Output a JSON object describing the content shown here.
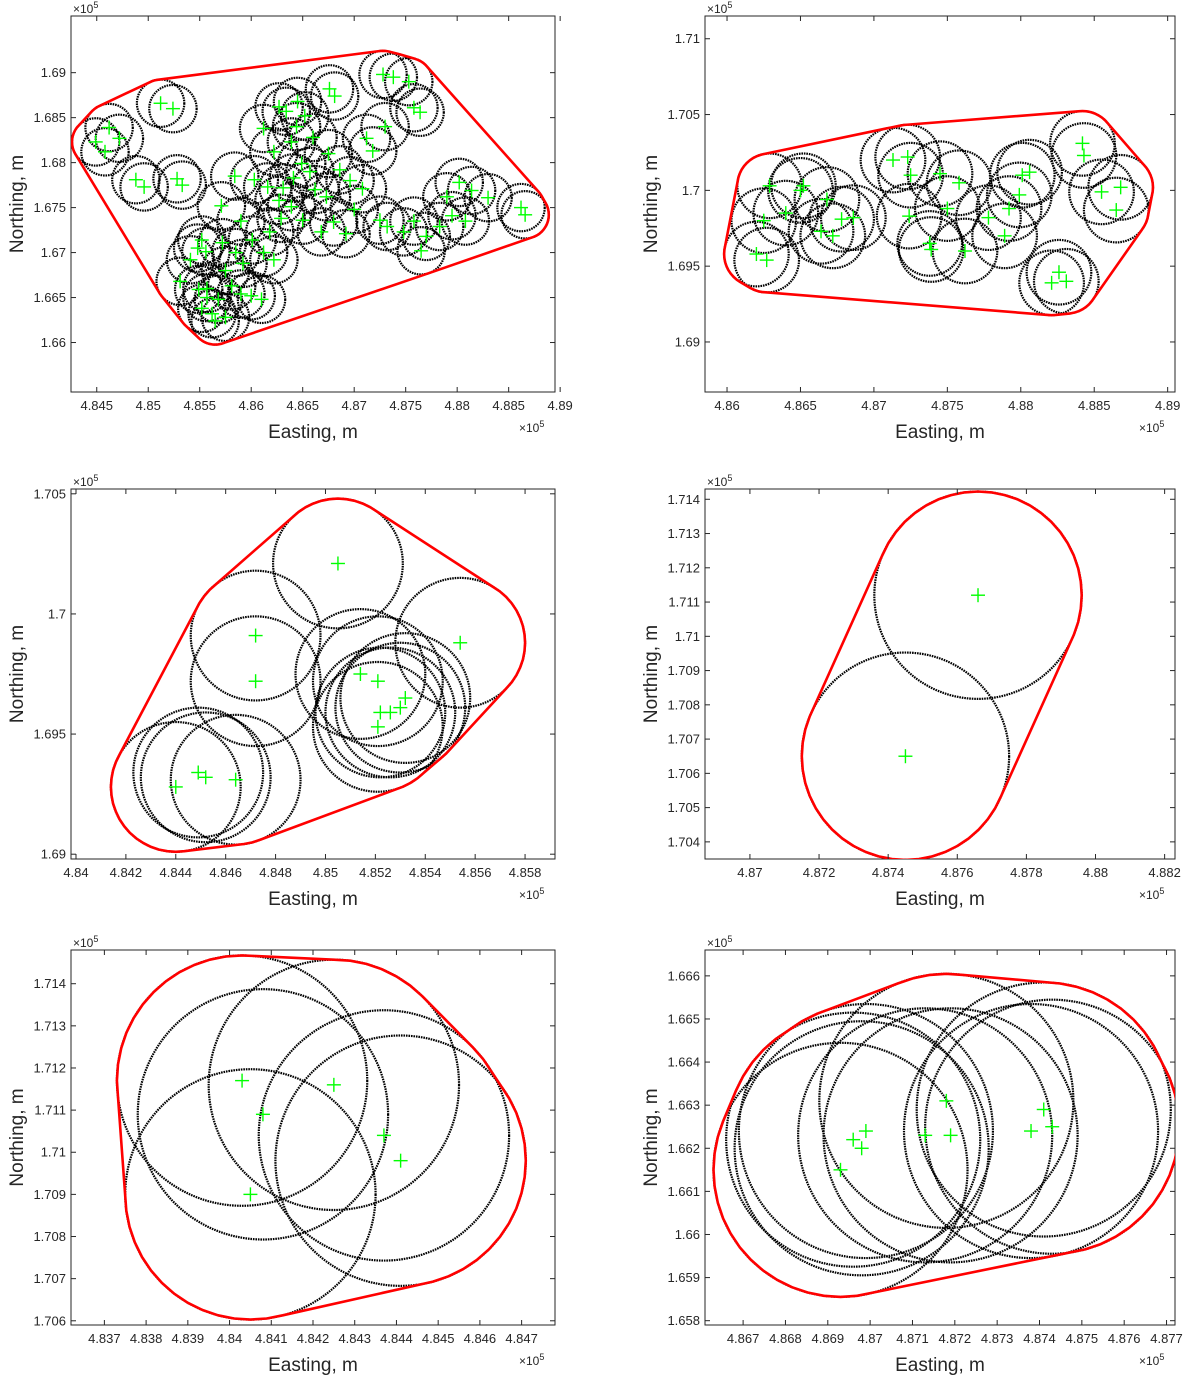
{
  "chart_data": [
    {
      "type": "scatter",
      "xlabel": "Easting, m",
      "ylabel": "Northing, m",
      "x_multiplier": "×10",
      "x_exponent": "5",
      "y_multiplier": "×10",
      "y_exponent": "5",
      "xlim": [
        4.8425,
        4.8895
      ],
      "ylim": [
        1.6545,
        1.6963
      ],
      "xticks": [
        4.845,
        4.85,
        4.855,
        4.86,
        4.865,
        4.87,
        4.875,
        4.88,
        4.885,
        4.89
      ],
      "xtick_labels": [
        "4.845",
        "4.85",
        "4.855",
        "4.86",
        "4.865",
        "4.87",
        "4.875",
        "4.88",
        "4.885",
        "4.89"
      ],
      "yticks": [
        1.66,
        1.665,
        1.67,
        1.675,
        1.68,
        1.685,
        1.69
      ],
      "ytick_labels": [
        "1.66",
        "1.665",
        "1.67",
        "1.675",
        "1.68",
        "1.685",
        "1.69"
      ],
      "buffer_radius": 0.0023,
      "series": [
        {
          "values": [
            [
              4.8462,
              1.6839
            ],
            [
              4.8458,
              1.6812
            ],
            [
              4.8449,
              1.6823
            ],
            [
              4.8472,
              1.6827
            ],
            [
              4.8512,
              1.6866
            ],
            [
              4.8524,
              1.686
            ],
            [
              4.8496,
              1.6773
            ],
            [
              4.8488,
              1.6781
            ],
            [
              4.8533,
              1.6775
            ],
            [
              4.8528,
              1.6782
            ],
            [
              4.8552,
              1.6714
            ],
            [
              4.8548,
              1.6705
            ],
            [
              4.8541,
              1.6692
            ],
            [
              4.8531,
              1.6668
            ],
            [
              4.8549,
              1.6659
            ],
            [
              4.8557,
              1.665
            ],
            [
              4.8568,
              1.6648
            ],
            [
              4.8552,
              1.6638
            ],
            [
              4.8562,
              1.6632
            ],
            [
              4.8565,
              1.6624
            ],
            [
              4.8575,
              1.6628
            ],
            [
              4.8581,
              1.6663
            ],
            [
              4.859,
              1.6654
            ],
            [
              4.8575,
              1.668
            ],
            [
              4.8592,
              1.6688
            ],
            [
              4.8585,
              1.67
            ],
            [
              4.8572,
              1.6711
            ],
            [
              4.8601,
              1.6714
            ],
            [
              4.8612,
              1.67
            ],
            [
              4.8622,
              1.6692
            ],
            [
              4.8618,
              1.6723
            ],
            [
              4.8629,
              1.6738
            ],
            [
              4.8571,
              1.6752
            ],
            [
              4.8584,
              1.6785
            ],
            [
              4.8603,
              1.6781
            ],
            [
              4.8616,
              1.6773
            ],
            [
              4.8627,
              1.6758
            ],
            [
              4.8639,
              1.6751
            ],
            [
              4.8631,
              1.6772
            ],
            [
              4.8641,
              1.6783
            ],
            [
              4.8649,
              1.6799
            ],
            [
              4.8657,
              1.679
            ],
            [
              4.8662,
              1.677
            ],
            [
              4.8673,
              1.6762
            ],
            [
              4.865,
              1.6736
            ],
            [
              4.8668,
              1.6723
            ],
            [
              4.868,
              1.6734
            ],
            [
              4.8692,
              1.6721
            ],
            [
              4.87,
              1.6748
            ],
            [
              4.8696,
              1.678
            ],
            [
              4.8686,
              1.6792
            ],
            [
              4.8708,
              1.6771
            ],
            [
              4.8675,
              1.681
            ],
            [
              4.866,
              1.6828
            ],
            [
              4.8644,
              1.684
            ],
            [
              4.8652,
              1.6852
            ],
            [
              4.8634,
              1.6857
            ],
            [
              4.8645,
              1.6868
            ],
            [
              4.8627,
              1.6862
            ],
            [
              4.8612,
              1.6838
            ],
            [
              4.8639,
              1.6823
            ],
            [
              4.8622,
              1.6812
            ],
            [
              4.8676,
              1.6882
            ],
            [
              4.8681,
              1.6874
            ],
            [
              4.8712,
              1.6827
            ],
            [
              4.8718,
              1.6813
            ],
            [
              4.873,
              1.684
            ],
            [
              4.8728,
              1.6898
            ],
            [
              4.8738,
              1.6895
            ],
            [
              4.8753,
              1.689
            ],
            [
              4.8758,
              1.6861
            ],
            [
              4.8764,
              1.6856
            ],
            [
              4.8725,
              1.6736
            ],
            [
              4.8732,
              1.6729
            ],
            [
              4.8748,
              1.6723
            ],
            [
              4.8758,
              1.6735
            ],
            [
              4.877,
              1.6718
            ],
            [
              4.8765,
              1.6702
            ],
            [
              4.8783,
              1.6729
            ],
            [
              4.8795,
              1.6741
            ],
            [
              4.8808,
              1.6735
            ],
            [
              4.879,
              1.6762
            ],
            [
              4.8802,
              1.6778
            ],
            [
              4.8814,
              1.6769
            ],
            [
              4.883,
              1.6761
            ],
            [
              4.8862,
              1.675
            ],
            [
              4.8866,
              1.6742
            ],
            [
              4.86,
              1.6652
            ],
            [
              4.861,
              1.6648
            ],
            [
              4.859,
              1.6735
            ],
            [
              4.8557,
              1.666
            ],
            [
              4.8556,
              1.6701
            ]
          ]
        }
      ]
    },
    {
      "type": "scatter",
      "xlabel": "Easting, m",
      "ylabel": "Northing, m",
      "x_multiplier": "×10",
      "x_exponent": "5",
      "y_multiplier": "×10",
      "y_exponent": "5",
      "xlim": [
        4.8585,
        4.8905
      ],
      "ylim": [
        1.6867,
        1.7115
      ],
      "xticks": [
        4.86,
        4.865,
        4.87,
        4.875,
        4.88,
        4.885,
        4.89
      ],
      "xtick_labels": [
        "4.86",
        "4.865",
        "4.87",
        "4.875",
        "4.88",
        "4.885",
        "4.89"
      ],
      "yticks": [
        1.69,
        1.695,
        1.7,
        1.705,
        1.71
      ],
      "ytick_labels": [
        "1.69",
        "1.695",
        "1.7",
        "1.705",
        "1.71"
      ],
      "buffer_radius": 0.0022,
      "series": [
        {
          "values": [
            [
              4.862,
              1.6958
            ],
            [
              4.8627,
              1.6954
            ],
            [
              4.8625,
              1.698
            ],
            [
              4.8629,
              1.7003
            ],
            [
              4.864,
              1.6985
            ],
            [
              4.865,
              1.7
            ],
            [
              4.8652,
              1.7003
            ],
            [
              4.8668,
              1.6994
            ],
            [
              4.8664,
              1.6973
            ],
            [
              4.8678,
              1.6981
            ],
            [
              4.8686,
              1.6982
            ],
            [
              4.8672,
              1.697
            ],
            [
              4.8713,
              1.702
            ],
            [
              4.8723,
              1.7022
            ],
            [
              4.8725,
              1.701
            ],
            [
              4.8724,
              1.6983
            ],
            [
              4.8738,
              1.6965
            ],
            [
              4.8739,
              1.6961
            ],
            [
              4.8745,
              1.7011
            ],
            [
              4.875,
              1.6988
            ],
            [
              4.8758,
              1.7005
            ],
            [
              4.8762,
              1.696
            ],
            [
              4.8778,
              1.6982
            ],
            [
              4.8789,
              1.697
            ],
            [
              4.8792,
              1.6988
            ],
            [
              4.8799,
              1.6997
            ],
            [
              4.8801,
              1.701
            ],
            [
              4.8806,
              1.7012
            ],
            [
              4.8821,
              1.6939
            ],
            [
              4.8826,
              1.6946
            ],
            [
              4.8831,
              1.694
            ],
            [
              4.8842,
              1.7031
            ],
            [
              4.8843,
              1.7023
            ],
            [
              4.8855,
              1.6999
            ],
            [
              4.8868,
              1.7002
            ],
            [
              4.8865,
              1.6987
            ]
          ]
        }
      ]
    },
    {
      "type": "scatter",
      "xlabel": "Easting, m",
      "ylabel": "Northing, m",
      "x_multiplier": "×10",
      "x_exponent": "5",
      "y_multiplier": "×10",
      "y_exponent": "5",
      "xlim": [
        4.8398,
        4.8592
      ],
      "ylim": [
        1.6898,
        1.7052
      ],
      "xticks": [
        4.84,
        4.842,
        4.844,
        4.846,
        4.848,
        4.85,
        4.852,
        4.854,
        4.856,
        4.858
      ],
      "xtick_labels": [
        "4.84",
        "4.842",
        "4.844",
        "4.846",
        "4.848",
        "4.85",
        "4.852",
        "4.854",
        "4.856",
        "4.858"
      ],
      "yticks": [
        1.69,
        1.695,
        1.7,
        1.705
      ],
      "ytick_labels": [
        "1.69",
        "1.695",
        "1.7",
        "1.705"
      ],
      "buffer_radius": 0.0026,
      "series": [
        {
          "values": [
            [
              4.8505,
              1.7021
            ],
            [
              4.8472,
              1.6991
            ],
            [
              4.8472,
              1.6972
            ],
            [
              4.8554,
              1.6988
            ],
            [
              4.8514,
              1.6975
            ],
            [
              4.8521,
              1.6972
            ],
            [
              4.8522,
              1.6959
            ],
            [
              4.8526,
              1.6959
            ],
            [
              4.853,
              1.6961
            ],
            [
              4.8532,
              1.6965
            ],
            [
              4.8521,
              1.6953
            ],
            [
              4.8449,
              1.6934
            ],
            [
              4.8452,
              1.6932
            ],
            [
              4.8464,
              1.6931
            ],
            [
              4.844,
              1.6928
            ]
          ]
        }
      ]
    },
    {
      "type": "scatter",
      "xlabel": "Easting, m",
      "ylabel": "Northing, m",
      "x_multiplier": "×10",
      "x_exponent": "5",
      "y_multiplier": "×10",
      "y_exponent": "5",
      "xlim": [
        4.8687,
        4.8823
      ],
      "ylim": [
        1.7035,
        1.7143
      ],
      "xticks": [
        4.87,
        4.872,
        4.874,
        4.876,
        4.878,
        4.88,
        4.882
      ],
      "xtick_labels": [
        "4.87",
        "4.872",
        "4.874",
        "4.876",
        "4.878",
        "4.88",
        "4.882"
      ],
      "yticks": [
        1.704,
        1.705,
        1.706,
        1.707,
        1.708,
        1.709,
        1.71,
        1.711,
        1.712,
        1.713,
        1.714
      ],
      "ytick_labels": [
        "1.704",
        "1.705",
        "1.706",
        "1.707",
        "1.708",
        "1.709",
        "1.71",
        "1.711",
        "1.712",
        "1.713",
        "1.714"
      ],
      "buffer_radius": 0.003,
      "series": [
        {
          "values": [
            [
              4.8766,
              1.7112
            ],
            [
              4.8745,
              1.7065
            ]
          ]
        }
      ]
    },
    {
      "type": "scatter",
      "xlabel": "Easting, m",
      "ylabel": "Northing, m",
      "x_multiplier": "×10",
      "x_exponent": "5",
      "y_multiplier": "×10",
      "y_exponent": "5",
      "xlim": [
        4.8362,
        4.8478
      ],
      "ylim": [
        1.7059,
        1.7148
      ],
      "xticks": [
        4.837,
        4.838,
        4.839,
        4.84,
        4.841,
        4.842,
        4.843,
        4.844,
        4.845,
        4.846,
        4.847
      ],
      "xtick_labels": [
        "4.837",
        "4.838",
        "4.839",
        "4.84",
        "4.841",
        "4.842",
        "4.843",
        "4.844",
        "4.845",
        "4.846",
        "4.847"
      ],
      "yticks": [
        1.706,
        1.707,
        1.708,
        1.709,
        1.71,
        1.711,
        1.712,
        1.713,
        1.714
      ],
      "ytick_labels": [
        "1.706",
        "1.707",
        "1.708",
        "1.709",
        "1.71",
        "1.711",
        "1.712",
        "1.713",
        "1.714"
      ],
      "buffer_radius": 0.003,
      "series": [
        {
          "values": [
            [
              4.8403,
              1.7117
            ],
            [
              4.8405,
              1.709
            ],
            [
              4.8408,
              1.7109
            ],
            [
              4.8425,
              1.7116
            ],
            [
              4.8437,
              1.7104
            ],
            [
              4.8441,
              1.7098
            ]
          ]
        }
      ]
    },
    {
      "type": "scatter",
      "xlabel": "Easting, m",
      "ylabel": "Northing, m",
      "x_multiplier": "×10",
      "x_exponent": "5",
      "y_multiplier": "×10",
      "y_exponent": "5",
      "xlim": [
        4.8661,
        4.8772
      ],
      "ylim": [
        1.6579,
        1.6666
      ],
      "xticks": [
        4.867,
        4.868,
        4.869,
        4.87,
        4.871,
        4.872,
        4.873,
        4.874,
        4.875,
        4.876,
        4.877
      ],
      "xtick_labels": [
        "4.867",
        "4.868",
        "4.869",
        "4.87",
        "4.871",
        "4.872",
        "4.873",
        "4.874",
        "4.875",
        "4.876",
        "4.877"
      ],
      "yticks": [
        1.658,
        1.659,
        1.66,
        1.661,
        1.662,
        1.663,
        1.664,
        1.665,
        1.666
      ],
      "ytick_labels": [
        "1.658",
        "1.659",
        "1.66",
        "1.661",
        "1.662",
        "1.663",
        "1.664",
        "1.665",
        "1.666"
      ],
      "buffer_radius": 0.003,
      "series": [
        {
          "values": [
            [
              4.8693,
              1.6615
            ],
            [
              4.8696,
              1.6622
            ],
            [
              4.8698,
              1.662
            ],
            [
              4.8699,
              1.6624
            ],
            [
              4.8713,
              1.6623
            ],
            [
              4.8718,
              1.6631
            ],
            [
              4.8719,
              1.6623
            ],
            [
              4.8738,
              1.6624
            ],
            [
              4.8741,
              1.6629
            ],
            [
              4.8743,
              1.6625
            ]
          ]
        }
      ]
    }
  ]
}
